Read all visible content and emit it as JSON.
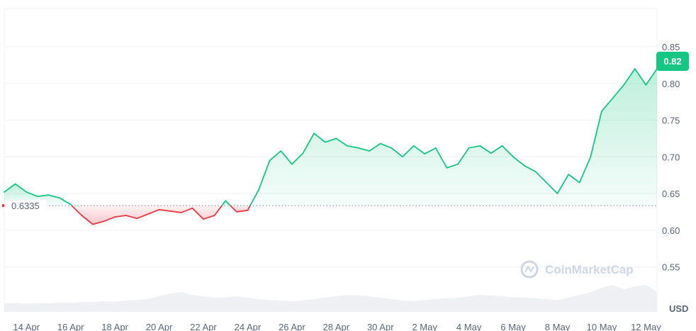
{
  "chart_data": {
    "type": "area",
    "unit": "USD",
    "current_price": "0.82",
    "baseline": {
      "value": 0.6335,
      "label": "0.6335"
    },
    "watermark": "CoinMarketCap",
    "x_labels": [
      "14 Apr",
      "16 Apr",
      "18 Apr",
      "20 Apr",
      "22 Apr",
      "24 Apr",
      "26 Apr",
      "28 Apr",
      "30 Apr",
      "2 May",
      "4 May",
      "6 May",
      "8 May",
      "10 May",
      "12 May"
    ],
    "y_ticks": [
      "0.85",
      "0.80",
      "0.75",
      "0.70",
      "0.65",
      "0.60",
      "0.55"
    ],
    "ylim": [
      0.52,
      0.875
    ],
    "grid": true,
    "x_start": "13 Apr",
    "series": [
      {
        "x": [
          0.0,
          0.5,
          1.0,
          1.5,
          2.0,
          2.5,
          3.0,
          3.5,
          4.0,
          4.5,
          5.0,
          5.5,
          6.0,
          6.5,
          7.0,
          7.5,
          8.0,
          8.5,
          9.0,
          9.5,
          10.0,
          10.5,
          11.0,
          11.5,
          12.0,
          12.5,
          13.0,
          13.5,
          14.0,
          14.5,
          15.0,
          15.5,
          16.0,
          16.5,
          17.0,
          17.5,
          18.0,
          18.5,
          19.0,
          19.5,
          20.0,
          20.5,
          21.0,
          21.5,
          22.0,
          22.5,
          23.0,
          23.5,
          24.0,
          24.5,
          25.0,
          25.5,
          26.0,
          26.5,
          27.0,
          27.5,
          28.0,
          28.5,
          29.0,
          29.5
        ],
        "values": [
          0.652,
          0.663,
          0.652,
          0.646,
          0.648,
          0.644,
          0.635,
          0.62,
          0.608,
          0.612,
          0.618,
          0.62,
          0.616,
          0.622,
          0.628,
          0.626,
          0.624,
          0.63,
          0.615,
          0.62,
          0.64,
          0.625,
          0.627,
          0.655,
          0.695,
          0.708,
          0.69,
          0.705,
          0.732,
          0.72,
          0.725,
          0.715,
          0.712,
          0.708,
          0.718,
          0.712,
          0.7,
          0.715,
          0.704,
          0.712,
          0.685,
          0.69,
          0.712,
          0.715,
          0.705,
          0.715,
          0.7,
          0.688,
          0.68,
          0.665,
          0.65,
          0.676,
          0.665,
          0.7,
          0.762,
          0.78,
          0.798,
          0.82,
          0.798,
          0.82
        ]
      }
    ],
    "volume": [
      0.3,
      0.32,
      0.29,
      0.31,
      0.3,
      0.33,
      0.32,
      0.35,
      0.34,
      0.38,
      0.36,
      0.4,
      0.42,
      0.45,
      0.55,
      0.65,
      0.7,
      0.6,
      0.55,
      0.5,
      0.52,
      0.55,
      0.5,
      0.45,
      0.42,
      0.4,
      0.38,
      0.4,
      0.45,
      0.5,
      0.55,
      0.6,
      0.58,
      0.55,
      0.5,
      0.45,
      0.4,
      0.38,
      0.42,
      0.45,
      0.48,
      0.5,
      0.55,
      0.6,
      0.58,
      0.55,
      0.52,
      0.5,
      0.48,
      0.45,
      0.42,
      0.5,
      0.6,
      0.7,
      0.85,
      0.95,
      0.8,
      0.9,
      0.95,
      0.7
    ]
  }
}
